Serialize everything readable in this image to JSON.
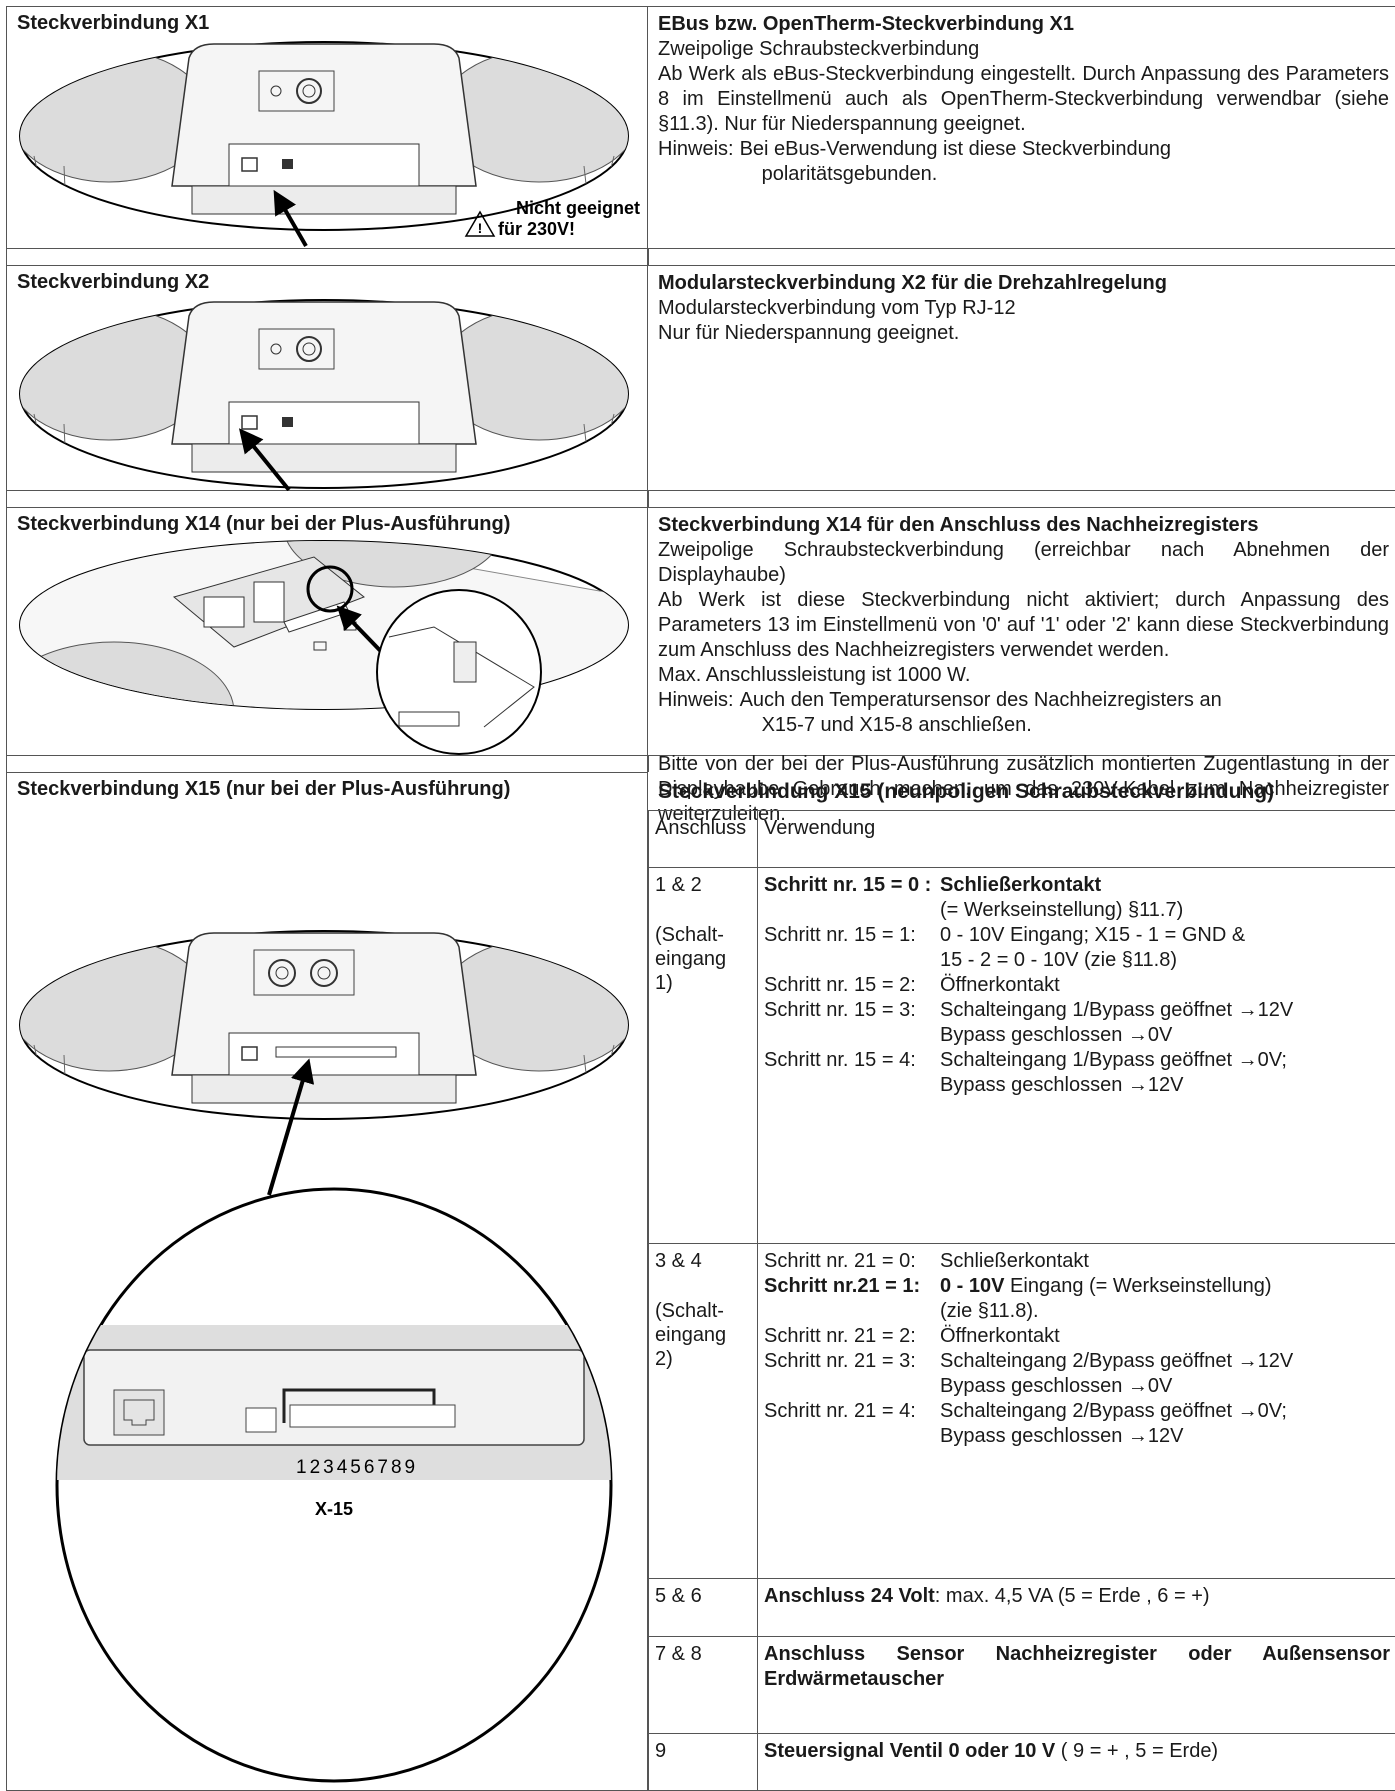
{
  "sections": [
    {
      "left_title": "Steckverbindung X1",
      "image_labels": [
        "Nicht geeignet",
        "für 230V!"
      ],
      "right_title": "EBus bzw. OpenTherm-Steckverbindung X1",
      "paragraphs": [
        "Zweipolige Schraubsteckverbindung",
        "Ab Werk als eBus-Steckverbindung eingestellt. Durch Anpassung des Parameters 8 im Einstellmenü auch als OpenTherm-Steckverbindung verwendbar (siehe §11.3). Nur für Niederspannung geeignet."
      ],
      "note": {
        "label": "Hinweis:",
        "lines": [
          "Bei eBus-Verwendung ist diese Steckverbindung",
          "polaritätsgebunden."
        ]
      }
    },
    {
      "left_title": "Steckverbindung X2",
      "right_title": "Modularsteckverbindung X2 für die Drehzahlregelung",
      "paragraphs": [
        "Modularsteckverbindung vom Typ RJ-12",
        "Nur für Niederspannung geeignet."
      ]
    },
    {
      "left_title": "Steckverbindung X14 (nur bei der Plus-Ausführung)",
      "right_title": "Steckverbindung X14 für den Anschluss des Nachheizregisters",
      "paragraphs": [
        "Zweipolige Schraubsteckverbindung (erreichbar nach Abnehmen der Displayhaube)",
        "Ab Werk ist diese Steckverbindung nicht aktiviert; durch Anpassung des Parameters 13 im Einstellmenü von '0' auf '1' oder '2' kann diese Steckverbindung zum Anschluss des Nachheizregisters verwendet werden.",
        "Max. Anschlussleistung ist 1000 W."
      ],
      "note": {
        "label": "Hinweis:",
        "lines": [
          "Auch den Temperatursensor des Nachheizregisters an",
          "X15-7 und X15-8 anschließen."
        ]
      },
      "extra": "Bitte von der bei der Plus-Ausführung zusätzlich montierten Zugentlastung in der Displayhaube Gebrauch machen, um das 230V-Kabel zum Nachheizregister weiterzuleiten."
    },
    {
      "left_title": "Steckverbindung X15 (nur bei der Plus-Ausführung)",
      "image_labels": [
        "123456789",
        "X-15"
      ],
      "table": {
        "title": "Steckverbindung X15 (neunpoligen Schraubsteckverbindung)",
        "headers": [
          "Anschluss",
          "Verwendung"
        ],
        "rows": [
          {
            "conn": "1 & 2",
            "conn_sub": [
              "(Schalt-",
              "eingang",
              "1)"
            ],
            "lines": [
              {
                "step": "Schritt nr. 15 = 0 :",
                "step_bold": true,
                "parts": [
                  {
                    "text": "Schließerkontakt",
                    "bold": true
                  }
                ],
                "cont": "(= Werkseinstellung) §11.7)"
              },
              {
                "step": "Schritt nr. 15 = 1:",
                "parts": [
                  {
                    "text": "0 - 10V Eingang; X15 - 1 = GND &"
                  }
                ],
                "cont": "15 - 2 = 0 - 10V (zie §11.8)"
              },
              {
                "step": "Schritt nr. 15 = 2:",
                "parts": [
                  {
                    "text": "Öffnerkontakt"
                  }
                ]
              },
              {
                "step": "Schritt nr. 15 = 3:",
                "parts": [
                  {
                    "text": "Schalteingang 1/Bypass geöffnet →12V"
                  }
                ],
                "cont": "Bypass geschlossen →0V"
              },
              {
                "step": "Schritt nr. 15 = 4:",
                "parts": [
                  {
                    "text": "Schalteingang 1/Bypass geöffnet →0V;"
                  }
                ],
                "cont": "Bypass geschlossen →12V"
              }
            ]
          },
          {
            "conn": "3 & 4",
            "conn_sub": [
              "(Schalt-",
              "eingang",
              "2)"
            ],
            "lines": [
              {
                "step": "Schritt nr. 21 = 0:",
                "parts": [
                  {
                    "text": "Schließerkontakt"
                  }
                ]
              },
              {
                "step": "Schritt nr.21 = 1:",
                "step_bold": true,
                "parts": [
                  {
                    "text": "0 - 10V",
                    "bold": true
                  },
                  {
                    "text": " Eingang (= Werkseinstellung)"
                  }
                ],
                "cont": "(zie §11.8)."
              },
              {
                "step": "Schritt nr. 21 = 2:",
                "parts": [
                  {
                    "text": "Öffnerkontakt"
                  }
                ]
              },
              {
                "step": "Schritt nr. 21 = 3:",
                "parts": [
                  {
                    "text": "Schalteingang 2/Bypass geöffnet →12V"
                  }
                ],
                "cont": "Bypass geschlossen →0V"
              },
              {
                "step": "Schritt nr. 21 = 4:",
                "parts": [
                  {
                    "text": "Schalteingang 2/Bypass geöffnet →0V;"
                  }
                ],
                "cont": "Bypass geschlossen →12V"
              }
            ]
          },
          {
            "conn": "5 & 6",
            "lines": [
              {
                "parts": [
                  {
                    "text": "Anschluss 24 Volt",
                    "bold": true
                  },
                  {
                    "text": ": max. 4,5 VA (5 = Erde , 6 = +)"
                  }
                ]
              }
            ]
          },
          {
            "conn": "7 & 8",
            "lines": [
              {
                "parts": [
                  {
                    "text": "Anschluss Sensor Nachheizregister oder Außensensor Erdwärmetauscher",
                    "bold": true
                  }
                ]
              }
            ]
          },
          {
            "conn": "9",
            "lines": [
              {
                "parts": [
                  {
                    "text": "Steuersignal Ventil 0 oder 10 V",
                    "bold": true
                  },
                  {
                    "text": " ( 9 = + , 5 = Erde)"
                  }
                ]
              }
            ]
          }
        ]
      }
    }
  ]
}
